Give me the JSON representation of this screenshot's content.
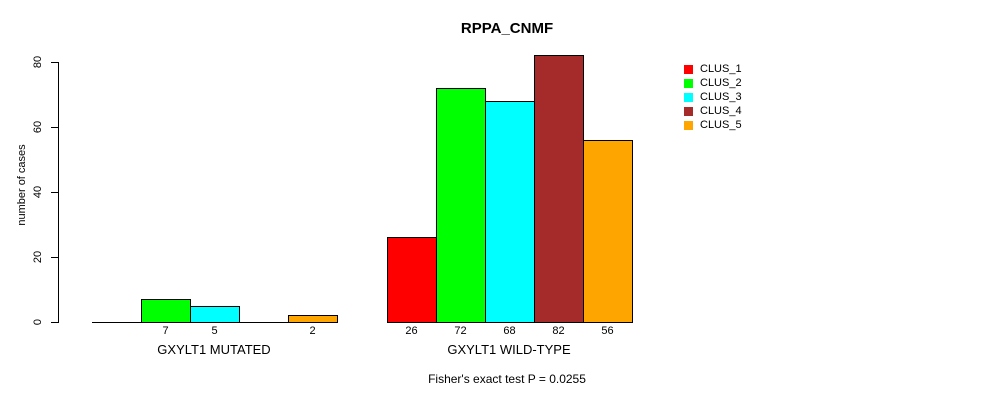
{
  "chart_data": {
    "type": "bar",
    "title": "RPPA_CNMF",
    "xlabel": "",
    "ylabel": "number of cases",
    "ylim": [
      0,
      84
    ],
    "yticks": [
      0,
      20,
      40,
      60,
      80
    ],
    "grid": false,
    "legend_position": "right",
    "categories": [
      "GXYLT1 MUTATED",
      "GXYLT1 WILD-TYPE"
    ],
    "series": [
      {
        "name": "CLUS_1",
        "color": "#FF0000",
        "values": [
          0,
          26
        ]
      },
      {
        "name": "CLUS_2",
        "color": "#00FF00",
        "values": [
          7,
          72
        ]
      },
      {
        "name": "CLUS_3",
        "color": "#00FFFF",
        "values": [
          5,
          68
        ]
      },
      {
        "name": "CLUS_4",
        "color": "#A52A2A",
        "values": [
          0,
          82
        ]
      },
      {
        "name": "CLUS_5",
        "color": "#FFA500",
        "values": [
          2,
          56
        ]
      }
    ],
    "bar_value_labels": {
      "GXYLT1 MUTATED": [
        "",
        "7",
        "5",
        "",
        "2"
      ],
      "GXYLT1 WILD-TYPE": [
        "26",
        "72",
        "68",
        "82",
        "56"
      ]
    },
    "annotation": "Fisher's exact test P = 0.0255"
  },
  "colors": {
    "axis": "#000000",
    "text": "#000000",
    "background": "#FFFFFF"
  }
}
